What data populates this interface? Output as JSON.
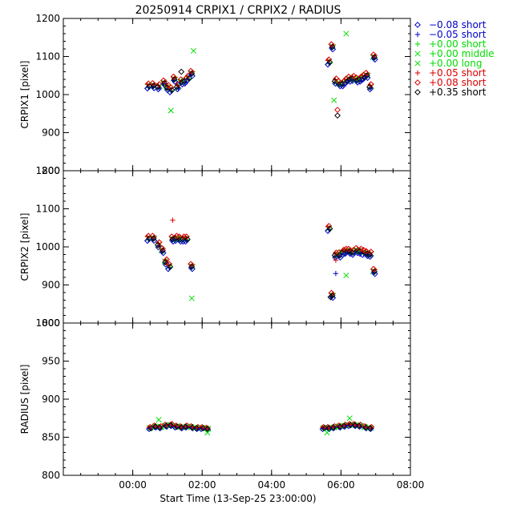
{
  "chart_data": {
    "type": "scatter",
    "title": "20250914 CRPIX1 / CRPIX2 / RADIUS",
    "xlabel": "Start Time (13-Sep-25 23:00:00)",
    "x_unit": "hours after 13-Sep-25 23:00:00",
    "xlim": [
      -1.0,
      9.0
    ],
    "x_ticks": [
      1,
      3,
      5,
      7,
      9
    ],
    "x_tick_labels": [
      "00:00",
      "02:00",
      "04:00",
      "06:00",
      "08:00"
    ],
    "grid": false,
    "legend_placement": "right, outside plot area",
    "legend": [
      {
        "label": "−0.08 short",
        "color": "#0000cc",
        "symbol": "diamond"
      },
      {
        "label": "−0.05 short",
        "color": "#0000cc",
        "symbol": "plus"
      },
      {
        "label": "+0.00 short",
        "color": "#00dd00",
        "symbol": "plus"
      },
      {
        "label": "+0.00 middle",
        "color": "#00dd00",
        "symbol": "cross"
      },
      {
        "label": "+0.00 long",
        "color": "#00dd00",
        "symbol": "cross"
      },
      {
        "label": "+0.05 short",
        "color": "#dd0000",
        "symbol": "plus"
      },
      {
        "label": "+0.08 short",
        "color": "#dd0000",
        "symbol": "diamond"
      },
      {
        "label": "+0.35 short",
        "color": "#000000",
        "symbol": "diamond"
      }
    ],
    "panels": [
      {
        "ylabel": "CRPIX1 [pixel]",
        "ylim": [
          800,
          1200
        ],
        "y_ticks": [
          800,
          900,
          1000,
          1100,
          1200
        ],
        "clusters": [
          {
            "x": [
              1.45,
              1.6,
              1.75,
              1.9,
              2.0,
              2.1,
              2.2,
              2.3,
              2.4,
              2.5,
              2.6,
              2.7
            ],
            "y": [
              1022,
              1023,
              1020,
              1030,
              1018,
              1012,
              1040,
              1020,
              1033,
              1035,
              1043,
              1055
            ]
          },
          {
            "x": [
              6.65,
              6.75,
              6.85,
              6.95,
              7.05,
              7.15,
              7.25,
              7.35,
              7.45,
              7.55,
              7.65,
              7.75,
              7.85,
              7.95
            ],
            "y": [
              1085,
              1125,
              1035,
              1028,
              1028,
              1035,
              1040,
              1042,
              1038,
              1040,
              1045,
              1050,
              1020,
              1098
            ]
          }
        ],
        "outliers": [
          {
            "x": 2.4,
            "y": 1060,
            "series": "+0.35 short"
          },
          {
            "x": 2.1,
            "y": 958,
            "series": "+0.00 middle"
          },
          {
            "x": 2.75,
            "y": 1115,
            "series": "+0.00 long"
          },
          {
            "x": 6.9,
            "y": 945,
            "series": "+0.35 short"
          },
          {
            "x": 6.9,
            "y": 960,
            "series": "+0.08 short"
          },
          {
            "x": 7.15,
            "y": 1160,
            "series": "+0.00 long"
          },
          {
            "x": 6.8,
            "y": 985,
            "series": "+0.00 middle"
          }
        ]
      },
      {
        "ylabel": "CRPIX2 [pixel]",
        "ylim": [
          800,
          1200
        ],
        "y_ticks": [
          800,
          900,
          1000,
          1100,
          1200
        ],
        "clusters": [
          {
            "x": [
              1.45,
              1.6,
              1.75,
              1.85,
              1.95,
              2.05,
              2.15,
              2.25,
              2.35,
              2.45,
              2.55,
              2.7
            ],
            "y": [
              1022,
              1022,
              1005,
              990,
              960,
              948,
              1020,
              1022,
              1020,
              1020,
              1020,
              948
            ]
          },
          {
            "x": [
              6.65,
              6.75,
              6.85,
              6.95,
              7.05,
              7.15,
              7.25,
              7.35,
              7.45,
              7.55,
              7.65,
              7.75,
              7.85,
              7.95
            ],
            "y": [
              1048,
              872,
              978,
              978,
              985,
              988,
              988,
              985,
              990,
              988,
              985,
              982,
              980,
              935
            ]
          }
        ],
        "outliers": [
          {
            "x": 2.7,
            "y": 865,
            "series": "+0.00 middle"
          },
          {
            "x": 2.15,
            "y": 1070,
            "series": "+0.05 short"
          },
          {
            "x": 6.85,
            "y": 930,
            "series": "−0.05 short"
          },
          {
            "x": 7.15,
            "y": 925,
            "series": "+0.00 middle"
          },
          {
            "x": 6.85,
            "y": 965,
            "series": "+0.05 short"
          },
          {
            "x": 6.7,
            "y": 868,
            "series": "+0.35 short"
          }
        ]
      },
      {
        "ylabel": "RADIUS [pixel]",
        "ylim": [
          800,
          1000
        ],
        "y_ticks": [
          800,
          850,
          900,
          950,
          1000
        ],
        "clusters": [
          {
            "x": [
              1.5,
              1.65,
              1.8,
              1.95,
              2.1,
              2.25,
              2.4,
              2.55,
              2.7,
              2.85,
              3.0,
              3.15
            ],
            "y": [
              862,
              864,
              863,
              865,
              866,
              864,
              863,
              864,
              863,
              862,
              862,
              861
            ]
          },
          {
            "x": [
              6.5,
              6.65,
              6.8,
              6.95,
              7.1,
              7.25,
              7.4,
              7.55,
              7.7,
              7.85
            ],
            "y": [
              862,
              862,
              863,
              864,
              865,
              866,
              866,
              865,
              863,
              862
            ]
          }
        ],
        "outliers": [
          {
            "x": 1.75,
            "y": 873,
            "series": "+0.00 middle"
          },
          {
            "x": 7.25,
            "y": 875,
            "series": "+0.00 middle"
          },
          {
            "x": 3.15,
            "y": 856,
            "series": "+0.00 long"
          },
          {
            "x": 6.6,
            "y": 856,
            "series": "+0.00 long"
          }
        ]
      }
    ]
  }
}
